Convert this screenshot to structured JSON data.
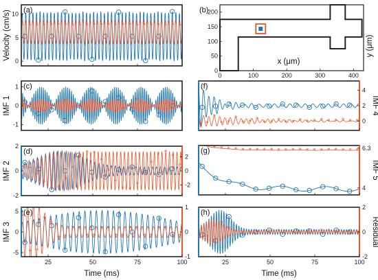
{
  "colors": {
    "blue": "#1f77b4",
    "orange": "#e8552a",
    "frame": "#222222"
  },
  "chart_data": [
    {
      "id": "a",
      "type": "line",
      "panel_label": "(a)",
      "ylabel": "Velocity (cm/s)",
      "xlim": [
        10,
        100
      ],
      "ylim": [
        -1,
        12
      ],
      "yticks": [
        "0",
        "5",
        "10"
      ],
      "xticks": [],
      "series": [
        {
          "color": "blue",
          "marker": "o",
          "signal": {
            "kind": "sine",
            "center": 5.3,
            "amp": 5.3,
            "period": 2.0,
            "amp_var": 0.08
          }
        },
        {
          "color": "orange",
          "marker": "*",
          "signal": {
            "kind": "sine",
            "center": 6.2,
            "amp": 2.6,
            "period": 2.0,
            "amp_var": 0.1
          }
        }
      ]
    },
    {
      "id": "b",
      "type": "diagram",
      "panel_label": "(b)",
      "xlabel": "x (μm)",
      "ylabel": "y (μm)",
      "xlim": [
        0,
        430
      ],
      "ylim": [
        0,
        225
      ],
      "xticks": [
        "0",
        "100",
        "200",
        "300",
        "400"
      ],
      "yticks": [
        "0",
        "50",
        "100",
        "150",
        "200"
      ],
      "channel_outline": [
        [
          0,
          0
        ],
        [
          55,
          0
        ],
        [
          55,
          115
        ],
        [
          330,
          115
        ],
        [
          330,
          75
        ],
        [
          375,
          75
        ],
        [
          375,
          115
        ],
        [
          425,
          115
        ],
        [
          425,
          175
        ],
        [
          375,
          175
        ],
        [
          375,
          225
        ],
        [
          330,
          225
        ],
        [
          330,
          175
        ],
        [
          0,
          175
        ]
      ],
      "probe_point": [
        122,
        143
      ]
    },
    {
      "id": "c",
      "type": "line",
      "panel_label": "(c)",
      "ylabel": "IMF 1",
      "xlim": [
        10,
        100
      ],
      "ylim": [
        -1.3,
        1.3
      ],
      "yticks": [
        "-1",
        "0",
        "1"
      ],
      "xticks": [],
      "series": [
        {
          "color": "blue",
          "marker": "o",
          "signal": {
            "kind": "beat",
            "amp": 1.0,
            "period": 1.05,
            "beat_period": 14
          }
        },
        {
          "color": "orange",
          "marker": "*",
          "signal": {
            "kind": "beat",
            "amp": 0.35,
            "period": 1.05,
            "beat_period": 14
          }
        }
      ]
    },
    {
      "id": "d",
      "type": "line",
      "panel_label": "(d)",
      "ylabel": "IMF 2",
      "xlim": [
        10,
        100
      ],
      "ylim": [
        -2,
        2
      ],
      "yticks": [
        "-2",
        "0",
        "2"
      ],
      "y2lim": [
        -3.5,
        3.5
      ],
      "y2ticks": [
        "-2",
        "0",
        "2"
      ],
      "xticks": [],
      "series": [
        {
          "color": "blue",
          "marker": "o",
          "signal": {
            "kind": "packet",
            "amp": 1.3,
            "period": 2.3,
            "center_t": 32,
            "width": 18
          }
        },
        {
          "color": "orange",
          "marker": "*",
          "axis": "right",
          "signal": {
            "kind": "grow",
            "amp": 2.7,
            "period": 2.1
          }
        }
      ]
    },
    {
      "id": "e",
      "type": "line",
      "panel_label": "(e)",
      "ylabel": "IMF 3",
      "xlim": [
        10,
        100
      ],
      "ylim": [
        -6,
        6
      ],
      "yticks": [
        "-5",
        "0",
        "5"
      ],
      "y2lim": [
        -1,
        1
      ],
      "y2ticks": [
        "-1",
        "0",
        "1"
      ],
      "xticks": [
        "25",
        "50",
        "75",
        "100"
      ],
      "xlabel": "Time (ms)",
      "series": [
        {
          "color": "blue",
          "marker": "o",
          "signal": {
            "kind": "envelope",
            "amp": 5.2,
            "period": 3.2
          }
        },
        {
          "color": "orange",
          "marker": "*",
          "axis": "right",
          "signal": {
            "kind": "packet",
            "amp": 0.9,
            "period": 3.2,
            "center_t": 16,
            "width": 10
          }
        }
      ]
    },
    {
      "id": "f",
      "type": "line",
      "panel_label": "(f)",
      "ylabel": "IMF 4",
      "xlim": [
        10,
        100
      ],
      "ylim": [
        -5,
        5
      ],
      "yticks": [],
      "ylabel_side": "right",
      "y2lim": [
        -1.2,
        5.2
      ],
      "y2ticks": [
        "0",
        "2",
        "4"
      ],
      "xticks": [],
      "series": [
        {
          "color": "blue",
          "marker": "o",
          "signal": {
            "kind": "decay",
            "amp": 4.5,
            "period": 3.0,
            "tau": 8
          }
        },
        {
          "color": "orange",
          "marker": "*",
          "axis": "right",
          "signal": {
            "kind": "decay",
            "amp": 0.8,
            "period": 3.0,
            "tau": 30,
            "offset": 0.0
          }
        }
      ]
    },
    {
      "id": "g",
      "type": "line",
      "panel_label": "(g)",
      "ylabel": "IMF 5",
      "xlim": [
        10,
        100
      ],
      "ylim": [
        -1.5,
        1.0
      ],
      "yticks": [],
      "ylabel_side": "right",
      "y2lim": [
        3.6,
        6.45
      ],
      "y2ticks": [
        "4",
        "6.3"
      ],
      "xticks": [],
      "series": [
        {
          "color": "blue",
          "marker": "o",
          "signal": {
            "kind": "slow",
            "start": 0.15,
            "end": -1.2,
            "tau": 12,
            "ripple": 0.12,
            "period": 25
          }
        },
        {
          "color": "orange",
          "marker": "*",
          "axis": "right",
          "signal": {
            "kind": "slow",
            "start": 6.55,
            "end": 6.18,
            "tau": 10,
            "ripple": 0.01,
            "period": 20
          }
        }
      ]
    },
    {
      "id": "h",
      "type": "line",
      "panel_label": "(h)",
      "ylabel": "Residual",
      "xlim": [
        10,
        100
      ],
      "ylim": [
        -2,
        2
      ],
      "yticks": [],
      "ylabel_side": "right",
      "y2lim": [
        -2,
        2
      ],
      "y2ticks": [
        "-2",
        "0",
        "2"
      ],
      "xticks": [
        "25",
        "50",
        "75",
        "100"
      ],
      "xlabel": "Time (ms)",
      "series": [
        {
          "color": "blue",
          "marker": "o",
          "signal": {
            "kind": "burst",
            "amp": 1.6,
            "period": 1.4,
            "center_t": 22,
            "width": 8
          }
        },
        {
          "color": "orange",
          "marker": "*",
          "axis": "right",
          "signal": {
            "kind": "burst",
            "amp": 0.9,
            "period": 1.4,
            "center_t": 18,
            "width": 8
          }
        }
      ]
    }
  ]
}
